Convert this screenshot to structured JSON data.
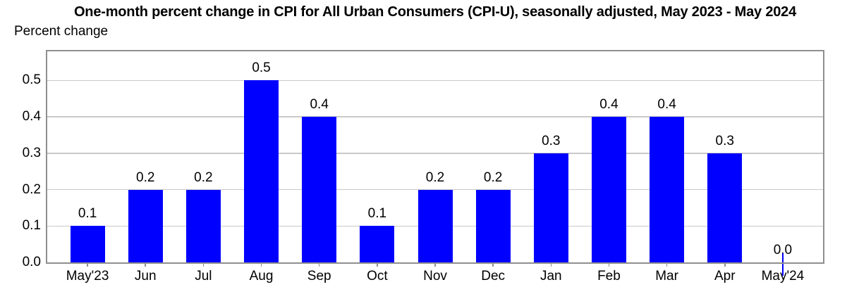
{
  "title": "One-month percent change in CPI for All Urban Consumers (CPI-U), seasonally adjusted, May 2023 - May 2024",
  "chart_data": {
    "type": "bar",
    "title": "One-month percent change in CPI for All Urban Consumers (CPI-U), seasonally adjusted, May 2023 - May 2024",
    "ylabel": "Percent change",
    "xlabel": "",
    "categories": [
      "May'23",
      "Jun",
      "Jul",
      "Aug",
      "Sep",
      "Oct",
      "Nov",
      "Dec",
      "Jan",
      "Feb",
      "Mar",
      "Apr",
      "May'24"
    ],
    "values": [
      0.1,
      0.2,
      0.2,
      0.5,
      0.4,
      0.1,
      0.2,
      0.2,
      0.3,
      0.4,
      0.4,
      0.3,
      0.0
    ],
    "value_labels": [
      "0.1",
      "0.2",
      "0.2",
      "0.5",
      "0.4",
      "0.1",
      "0.2",
      "0.2",
      "0.3",
      "0.4",
      "0.4",
      "0.3",
      "0.0"
    ],
    "yticks": [
      "0.0",
      "0.1",
      "0.2",
      "0.3",
      "0.4",
      "0.5"
    ],
    "ylim": [
      0,
      0.58
    ],
    "grid": "horizontal",
    "legend": "none",
    "bar_color": "#0000FF",
    "grid_color": "#c9c9c9",
    "frame_color": "#8f8f8f",
    "text_color": "#000000"
  }
}
